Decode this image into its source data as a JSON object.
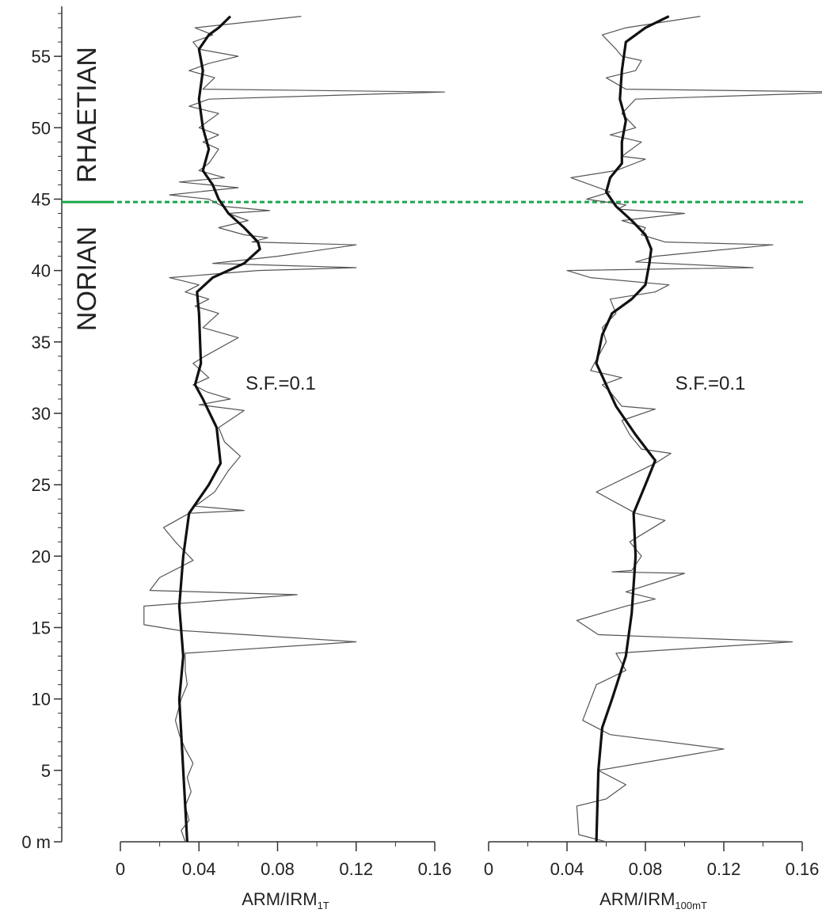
{
  "chart_data": [
    {
      "type": "line",
      "ylim": [
        0,
        58.5
      ],
      "yticks": [
        {
          "value": 0,
          "label": "0 m"
        },
        5,
        10,
        15,
        20,
        25,
        30,
        35,
        40,
        45,
        50,
        55
      ],
      "y_minor_step": 1,
      "stages": [
        {
          "label": "RHAETIAN",
          "from": 45,
          "to": 58.5
        },
        {
          "label": "NORIAN",
          "from": 35,
          "to": 45
        }
      ],
      "boundary": 44.8,
      "boundary_color": "#1aa64a",
      "xlim": [
        0,
        0.16
      ],
      "xticks": [
        0,
        0.04,
        0.08,
        0.12,
        0.16
      ],
      "x_minor_step": 0.02,
      "xlabel": "ARM/IRM",
      "xlabel_sub": "1T",
      "annotation": "S.F.=0.1",
      "series": [
        {
          "color": "#555555",
          "width": 1.2,
          "depth": [
            0,
            0.8,
            1.5,
            2.5,
            3.5,
            4.5,
            5.5,
            6.5,
            7.5,
            8.5,
            10,
            11,
            12,
            13.2,
            14,
            14.8,
            15.2,
            16.5,
            17.3,
            17.6,
            18.5,
            19.7,
            21,
            22,
            23,
            23.2,
            23.5,
            24.5,
            26,
            27,
            28,
            29,
            30.2,
            30.6,
            31,
            31.5,
            32,
            32.5,
            33.5,
            34,
            35.3,
            36,
            37,
            37.5,
            38,
            38.5,
            39,
            39.5,
            40,
            40.2,
            40.5,
            41,
            41.8,
            42,
            42.3,
            42.5,
            43,
            43.5,
            44,
            44.2,
            44.5,
            45,
            45.3,
            45.8,
            46.2,
            46.5,
            47,
            47.5,
            48.5,
            49,
            49.5,
            50,
            51,
            51.5,
            52,
            52.5,
            52.7,
            53.5,
            54,
            54.5,
            55,
            55.5,
            56,
            56.5,
            57,
            57.8
          ],
          "values": [
            0.033,
            0.031,
            0.035,
            0.033,
            0.036,
            0.034,
            0.037,
            0.033,
            0.03,
            0.028,
            0.031,
            0.034,
            0.033,
            0.033,
            0.12,
            0.03,
            0.012,
            0.012,
            0.09,
            0.015,
            0.02,
            0.037,
            0.028,
            0.022,
            0.035,
            0.063,
            0.038,
            0.048,
            0.055,
            0.061,
            0.053,
            0.05,
            0.063,
            0.04,
            0.056,
            0.044,
            0.037,
            0.045,
            0.037,
            0.043,
            0.06,
            0.042,
            0.05,
            0.038,
            0.045,
            0.033,
            0.04,
            0.025,
            0.07,
            0.12,
            0.047,
            0.08,
            0.12,
            0.067,
            0.075,
            0.063,
            0.05,
            0.065,
            0.055,
            0.076,
            0.052,
            0.045,
            0.025,
            0.06,
            0.03,
            0.053,
            0.04,
            0.045,
            0.05,
            0.042,
            0.05,
            0.04,
            0.05,
            0.035,
            0.045,
            0.165,
            0.042,
            0.048,
            0.035,
            0.045,
            0.06,
            0.04,
            0.037,
            0.047,
            0.038,
            0.092
          ]
        },
        {
          "color": "#111111",
          "width": 3.2,
          "depth": [
            0,
            5,
            10,
            13,
            16.5,
            20,
            23,
            25,
            26.5,
            29,
            31,
            32,
            33.5,
            37,
            38.5,
            39.5,
            40.5,
            41.5,
            42,
            43,
            44,
            45,
            46,
            47,
            48.5,
            50,
            52,
            54,
            55.5,
            56.5,
            57,
            57.8
          ],
          "values": [
            0.034,
            0.032,
            0.03,
            0.032,
            0.03,
            0.032,
            0.035,
            0.045,
            0.051,
            0.049,
            0.042,
            0.038,
            0.041,
            0.04,
            0.039,
            0.047,
            0.063,
            0.071,
            0.07,
            0.063,
            0.055,
            0.05,
            0.047,
            0.042,
            0.045,
            0.042,
            0.04,
            0.042,
            0.04,
            0.045,
            0.05,
            0.056
          ]
        }
      ]
    },
    {
      "type": "line",
      "ylim": [
        0,
        58.5
      ],
      "xlim": [
        0,
        0.16
      ],
      "xticks": [
        0,
        0.04,
        0.08,
        0.12,
        0.16
      ],
      "x_minor_step": 0.02,
      "xlabel": "ARM/IRM",
      "xlabel_sub": "100mT",
      "annotation": "S.F.=0.1",
      "series": [
        {
          "color": "#555555",
          "width": 1.2,
          "depth": [
            0,
            0.5,
            2.5,
            3,
            4,
            5,
            6.5,
            7.5,
            8.5,
            11,
            12,
            13.2,
            14,
            14.5,
            15.5,
            16.5,
            17,
            17.5,
            18.8,
            18.9,
            19,
            20,
            21,
            22.5,
            23,
            24.5,
            25.5,
            26.5,
            27.2,
            27.5,
            28.5,
            29.5,
            30.3,
            30.5,
            31.5,
            32,
            32.5,
            33,
            34,
            35,
            36,
            37,
            38,
            38.5,
            39,
            39.5,
            40,
            40.2,
            40.6,
            41,
            41.8,
            42,
            42.5,
            43,
            43.5,
            44,
            44.3,
            44.6,
            45,
            45.5,
            46.5,
            47,
            47.8,
            48,
            49,
            49.5,
            50,
            51,
            52,
            52.5,
            52.7,
            53.5,
            54,
            54.7,
            55,
            55.5,
            56.5,
            57,
            57.8
          ],
          "values": [
            0.06,
            0.046,
            0.045,
            0.06,
            0.07,
            0.056,
            0.12,
            0.062,
            0.048,
            0.055,
            0.07,
            0.065,
            0.155,
            0.056,
            0.045,
            0.07,
            0.085,
            0.07,
            0.1,
            0.063,
            0.073,
            0.078,
            0.072,
            0.09,
            0.075,
            0.055,
            0.07,
            0.085,
            0.093,
            0.078,
            0.072,
            0.068,
            0.085,
            0.068,
            0.062,
            0.058,
            0.068,
            0.052,
            0.056,
            0.06,
            0.058,
            0.065,
            0.062,
            0.085,
            0.092,
            0.052,
            0.04,
            0.135,
            0.075,
            0.085,
            0.145,
            0.09,
            0.078,
            0.08,
            0.068,
            0.1,
            0.066,
            0.07,
            0.05,
            0.062,
            0.042,
            0.065,
            0.08,
            0.068,
            0.078,
            0.062,
            0.075,
            0.068,
            0.075,
            0.185,
            0.07,
            0.06,
            0.075,
            0.078,
            0.068,
            0.065,
            0.058,
            0.07,
            0.108
          ]
        },
        {
          "color": "#111111",
          "width": 3.2,
          "depth": [
            0,
            5,
            8,
            10,
            13,
            16,
            20,
            23,
            25,
            26.7,
            28.5,
            30.5,
            32,
            33.5,
            35.5,
            37,
            38,
            39,
            40.5,
            41.5,
            42.5,
            43.5,
            44.5,
            45.5,
            46.5,
            47.5,
            49,
            50.5,
            52,
            54,
            56,
            57,
            57.8
          ],
          "values": [
            0.055,
            0.056,
            0.058,
            0.063,
            0.07,
            0.073,
            0.075,
            0.074,
            0.08,
            0.085,
            0.075,
            0.065,
            0.06,
            0.055,
            0.058,
            0.063,
            0.073,
            0.08,
            0.082,
            0.083,
            0.08,
            0.073,
            0.065,
            0.06,
            0.062,
            0.068,
            0.068,
            0.07,
            0.067,
            0.068,
            0.07,
            0.08,
            0.092
          ]
        }
      ]
    }
  ]
}
